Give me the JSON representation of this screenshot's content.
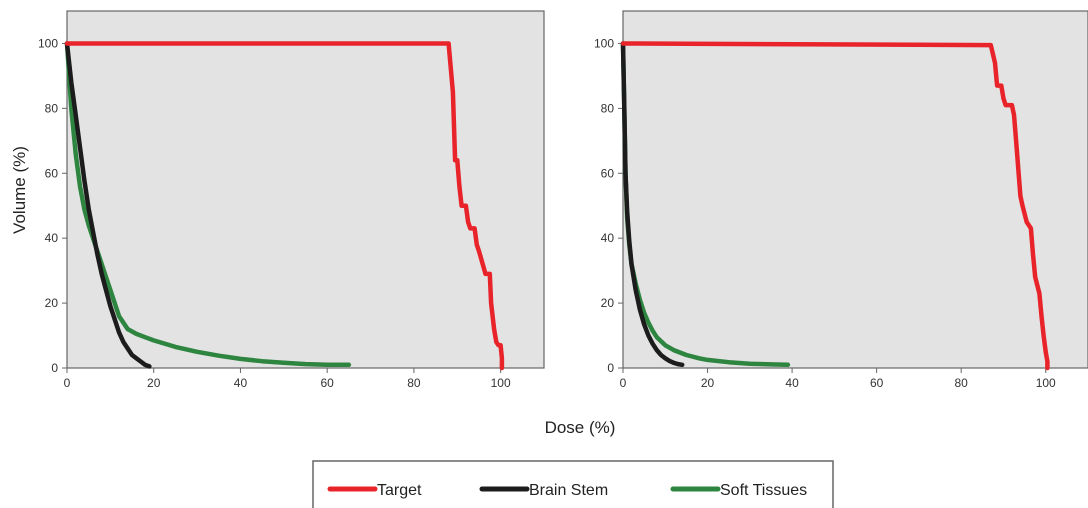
{
  "figure": {
    "xlabel": "Dose (%)",
    "ylabel": "Volume (%)"
  },
  "legend": {
    "placement": "bottom-center",
    "entries": [
      {
        "name": "Target",
        "color": "#e8242a"
      },
      {
        "name": "Brain Stem",
        "color": "#1c1c1c"
      },
      {
        "name": "Soft Tissues",
        "color": "#2e8540"
      }
    ]
  },
  "colors": {
    "plot_background": "#e3e3e3",
    "frame": "#666666"
  },
  "chart_data": [
    {
      "type": "line",
      "xlim": [
        0,
        110
      ],
      "ylim": [
        0,
        110
      ],
      "xticks": [
        "0",
        "20",
        "40",
        "60",
        "80",
        "100"
      ],
      "yticks": [
        "0",
        "20",
        "40",
        "60",
        "80",
        "100"
      ],
      "grid": false,
      "series": [
        {
          "name": "Target",
          "color": "#e8242a",
          "x": [
            0,
            88,
            89,
            89.5,
            90,
            90.5,
            91,
            92,
            92.5,
            93,
            94,
            94.5,
            95,
            96.5,
            97.5,
            97.8,
            98.5,
            99,
            99.5,
            100,
            100.3,
            100.3
          ],
          "y": [
            100,
            100,
            85,
            64,
            64,
            56,
            50,
            50,
            45,
            43,
            43,
            38,
            36,
            29,
            29,
            20,
            12,
            8,
            7,
            7,
            3,
            0
          ]
        },
        {
          "name": "Brain Stem",
          "color": "#1c1c1c",
          "x": [
            0,
            1,
            2,
            3,
            4,
            5,
            6,
            7,
            8,
            9,
            10,
            11,
            12,
            13,
            14,
            15,
            16,
            17,
            18,
            19
          ],
          "y": [
            100,
            88,
            78,
            68,
            58,
            49,
            42,
            35,
            29,
            24,
            19,
            15,
            11,
            8,
            6,
            4,
            3,
            2,
            1,
            0.5
          ]
        },
        {
          "name": "Soft Tissues",
          "color": "#2e8540",
          "x": [
            0,
            1,
            2,
            3,
            4,
            5,
            6,
            7,
            8,
            9,
            10,
            11,
            12,
            14,
            16,
            18,
            20,
            25,
            30,
            35,
            40,
            45,
            50,
            55,
            60,
            65
          ],
          "y": [
            100,
            80,
            66,
            56,
            49,
            44,
            40,
            36,
            32,
            28,
            24,
            20,
            16,
            12,
            10.5,
            9.5,
            8.5,
            6.5,
            5,
            3.8,
            2.8,
            2.1,
            1.6,
            1.2,
            1,
            1
          ]
        }
      ]
    },
    {
      "type": "line",
      "xlim": [
        0,
        110
      ],
      "ylim": [
        0,
        110
      ],
      "xticks": [
        "0",
        "20",
        "40",
        "60",
        "80",
        "100"
      ],
      "yticks": [
        "0",
        "20",
        "40",
        "60",
        "80",
        "100"
      ],
      "grid": false,
      "series": [
        {
          "name": "Target",
          "color": "#e8242a",
          "x": [
            0,
            87,
            88,
            88.5,
            89.5,
            90,
            90.5,
            91,
            92,
            92.5,
            93,
            94,
            94.5,
            95.5,
            96.5,
            97,
            97.5,
            98.5,
            99,
            99.5,
            100,
            100.4,
            100.4
          ],
          "y": [
            100,
            99.5,
            94,
            87,
            87,
            83,
            81,
            81,
            81,
            78,
            70,
            53,
            50,
            45,
            43,
            35,
            28,
            23,
            16,
            10,
            5,
            2,
            0
          ]
        },
        {
          "name": "Brain Stem",
          "color": "#1c1c1c",
          "x": [
            0,
            0.3,
            0.6,
            1,
            1.5,
            2,
            3,
            4,
            5,
            6,
            7,
            8,
            9,
            10,
            11,
            12,
            13,
            14
          ],
          "y": [
            100,
            80,
            60,
            48,
            39,
            32,
            24,
            18,
            13.5,
            10,
            7.5,
            5.5,
            4,
            3,
            2.2,
            1.6,
            1.2,
            1
          ]
        },
        {
          "name": "Soft Tissues",
          "color": "#2e8540",
          "x": [
            0,
            0.3,
            0.6,
            1,
            1.5,
            2,
            3,
            4,
            5,
            6,
            7,
            8,
            10,
            12,
            15,
            18,
            20,
            25,
            30,
            35,
            39
          ],
          "y": [
            100,
            80,
            60,
            46,
            38,
            32,
            26,
            21,
            17,
            14,
            11.5,
            9.5,
            7,
            5.5,
            4,
            3,
            2.5,
            1.8,
            1.3,
            1.1,
            1
          ]
        }
      ]
    }
  ]
}
